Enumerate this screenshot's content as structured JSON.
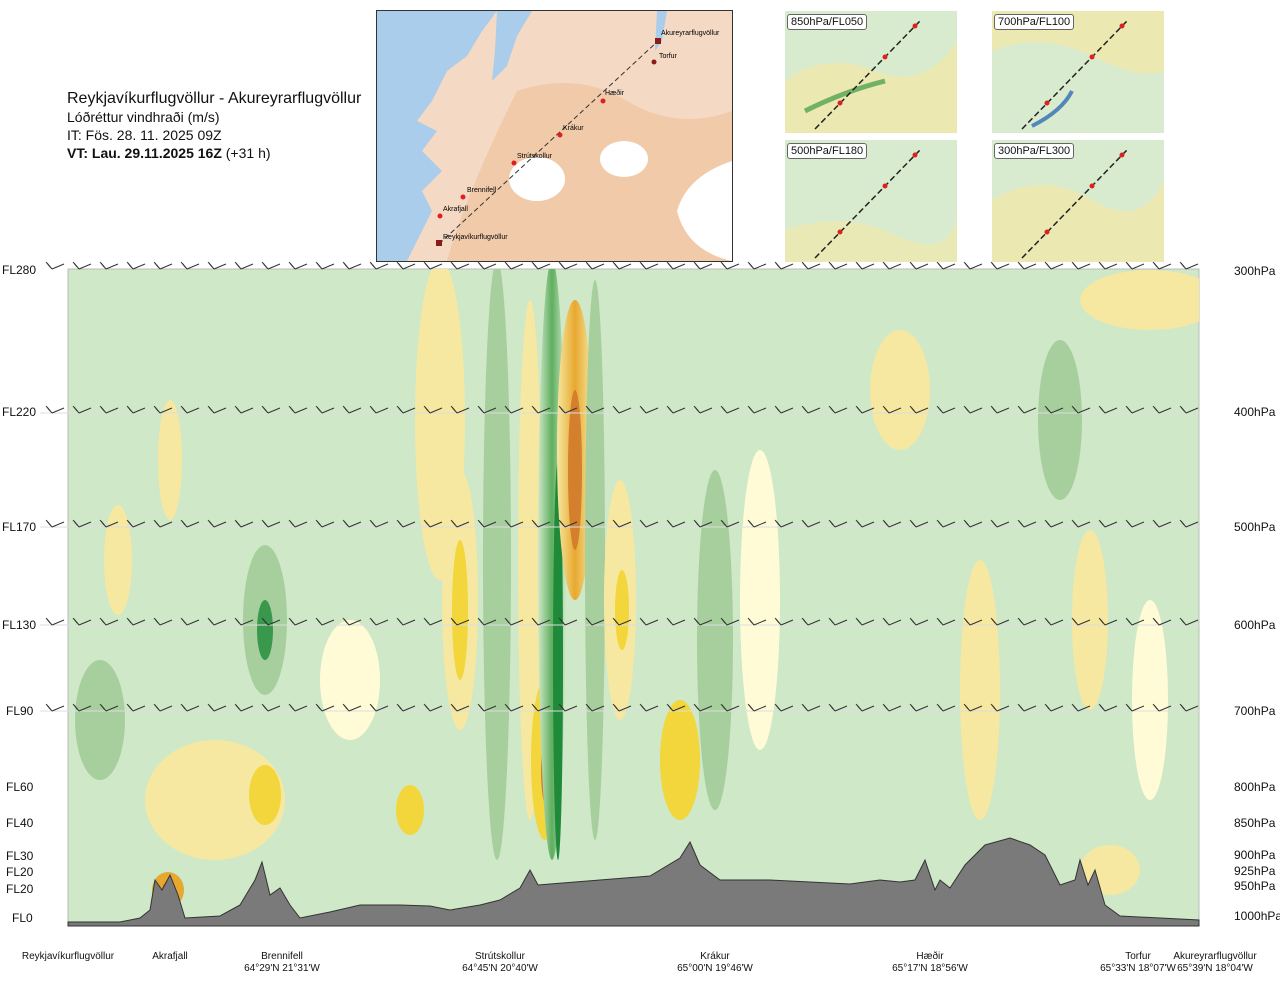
{
  "header": {
    "route": "Reykjavíkurflugvöllur - Akureyrarflugvöllur",
    "subtitle": "Lóðréttur vindhraði (m/s)",
    "issue_time": "IT: Fös. 28. 11. 2025 09Z",
    "valid_label": "VT: Lau. 29.11.2025 16Z",
    "valid_offset": "(+31 h)"
  },
  "route_map": {
    "places": [
      "Akureyrarflugvöllur",
      "Torfur",
      "Hæðir",
      "Krákur",
      "Strútskollur",
      "Brennifell",
      "Akrafjall",
      "Reykjavíkurflugvöllur"
    ]
  },
  "mini_maps": [
    {
      "label": "850hPa/FL050"
    },
    {
      "label": "700hPa/FL100"
    },
    {
      "label": "500hPa/FL180"
    },
    {
      "label": "300hPa/FL300"
    }
  ],
  "chart_data": {
    "type": "heatmap",
    "title": "Lóðréttur vindhraði (m/s)",
    "variable": "vertical wind speed (m/s)",
    "left_axis_flight_levels": [
      "FL280",
      "FL220",
      "FL170",
      "FL130",
      "FL90",
      "FL60",
      "FL40",
      "FL30",
      "FL20",
      "FL20",
      "FL0"
    ],
    "right_axis_pressure_levels": [
      "300hPa",
      "400hPa",
      "500hPa",
      "600hPa",
      "700hPa",
      "800hPa",
      "850hPa",
      "900hPa",
      "925hPa",
      "950hPa",
      "1000hPa"
    ],
    "barb_rows_hpa": [
      300,
      400,
      500,
      600,
      700
    ],
    "x_locations": [
      {
        "name": "Reykjavíkurflugvöllur",
        "coord": ""
      },
      {
        "name": "Akrafjall",
        "coord": ""
      },
      {
        "name": "Brennifell",
        "coord": "64°29'N 21°31'W"
      },
      {
        "name": "Strútskollur",
        "coord": "64°45'N 20°40'W"
      },
      {
        "name": "Krákur",
        "coord": "65°00'N 19°46'W"
      },
      {
        "name": "Hæðir",
        "coord": "65°17'N 18°56'W"
      },
      {
        "name": "Torfur",
        "coord": "65°33'N 18°07'W"
      },
      {
        "name": "Akureyrarflugvöllur",
        "coord": "65°39'N 18°04'W"
      }
    ],
    "color_scale": [
      "#1f8a3a",
      "#5fae5f",
      "#a7cf9d",
      "#cfe8c8",
      "#eaf5dc",
      "#fffbd7",
      "#f6e8a0",
      "#f2d63c",
      "#e7a82f",
      "#d07a2c"
    ],
    "highlights": [
      {
        "location": "Strútskollur",
        "note": "strong alternating updraft / downdraft bands through troposphere"
      },
      {
        "location": "Akrafjall",
        "note": "strong low-level updraft near terrain"
      }
    ]
  },
  "colors": {
    "terrain": "#7a7a7a",
    "background_field": "#cfe8c8"
  }
}
